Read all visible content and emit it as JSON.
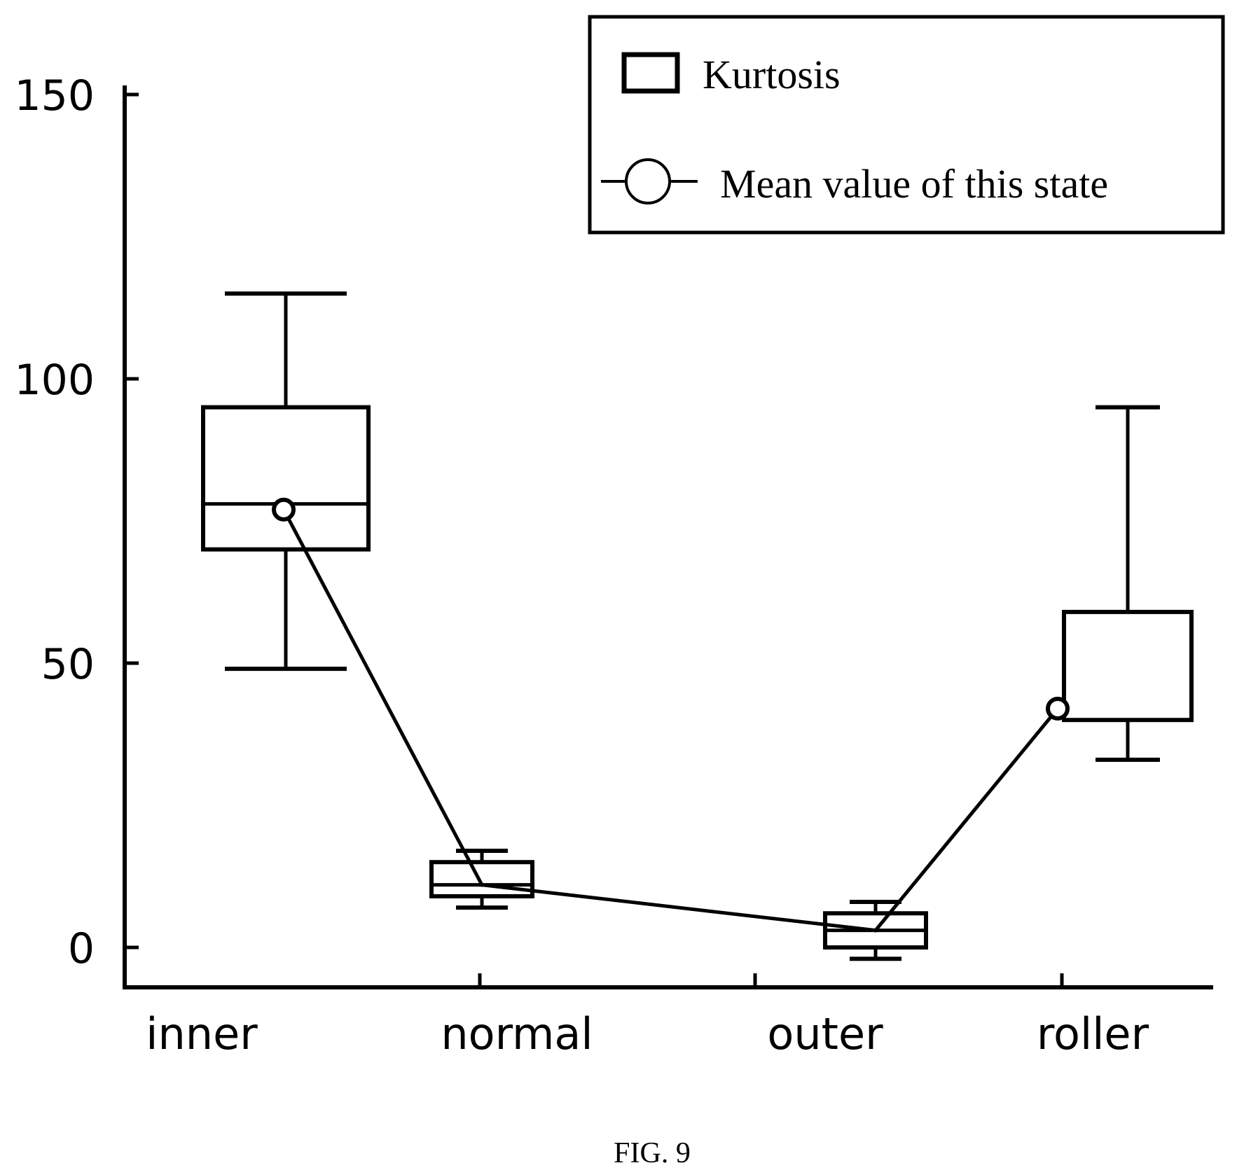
{
  "chart_data": {
    "type": "box",
    "categories": [
      "inner",
      "normal",
      "outer",
      "roller"
    ],
    "ylim": [
      -8,
      158
    ],
    "yticks": [
      0,
      50,
      100,
      150
    ],
    "xlabel": "",
    "ylabel": "",
    "grid": false,
    "legend": {
      "placement": "top-right",
      "entries": [
        "Kurtosis",
        "Mean value of this state"
      ]
    },
    "series": [
      {
        "name": "Kurtosis",
        "boxes": [
          {
            "category": "inner",
            "whisker_low": 49,
            "q1": 70,
            "median": 78,
            "q3": 95,
            "whisker_high": 115
          },
          {
            "category": "normal",
            "whisker_low": 7,
            "q1": 9,
            "median": 11,
            "q3": 15,
            "whisker_high": 17
          },
          {
            "category": "outer",
            "whisker_low": -2,
            "q1": 0,
            "median": 3,
            "q3": 6,
            "whisker_high": 8
          },
          {
            "category": "roller",
            "whisker_low": 33,
            "q1": 40,
            "median": 59,
            "q3": 59,
            "whisker_high": 95
          }
        ]
      },
      {
        "name": "Mean value of this state",
        "values": [
          77,
          11,
          3,
          42
        ]
      }
    ],
    "title": "FIG. 9"
  },
  "colors": {
    "ink": "#000000",
    "background": "#ffffff"
  }
}
